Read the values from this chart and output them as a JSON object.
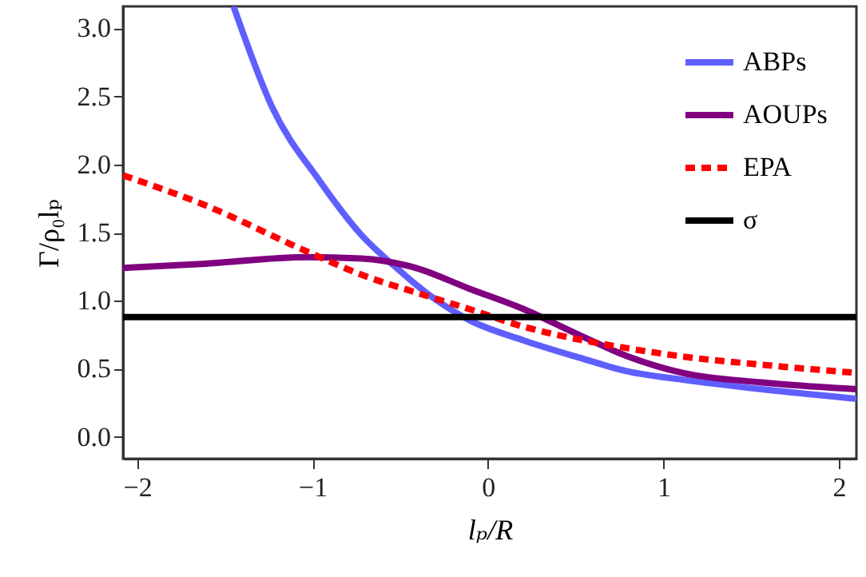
{
  "chart_data": {
    "type": "line",
    "xlabel": "lₚ/R",
    "ylabel": "Γ/ρ₀lₚ",
    "xlim": [
      -2.08,
      2.1
    ],
    "xticks": [
      -2,
      -1,
      0,
      1,
      2
    ],
    "ylim": [
      -0.16,
      3.16
    ],
    "yticks": [
      {
        "value": 0,
        "label": "0.0"
      },
      0.5,
      {
        "value": 1,
        "label": "1.0"
      },
      1.5,
      {
        "value": 2,
        "label": "2.0"
      },
      2.5,
      {
        "value": 3,
        "label": "3.0"
      }
    ],
    "legend": "top right",
    "grid": false,
    "series": [
      {
        "name": "ABPs",
        "color": "#5f5fff",
        "line_style": "solid",
        "x": [
          -1.45,
          -1.23,
          -0.96,
          -0.72,
          -0.53,
          -0.3,
          -0.11,
          0.2,
          0.5,
          0.8,
          1.11,
          1.56,
          2.1
        ],
        "values": [
          3.16,
          2.42,
          1.88,
          1.48,
          1.25,
          1.01,
          0.86,
          0.71,
          0.59,
          0.48,
          0.42,
          0.35,
          0.28
        ]
      },
      {
        "name": "AOUPs",
        "color": "#800080",
        "line_style": "solid",
        "x": [
          -2.08,
          -1.63,
          -1.03,
          -0.72,
          -0.41,
          -0.11,
          0.2,
          0.5,
          0.8,
          1.11,
          1.56,
          2.1
        ],
        "values": [
          1.24,
          1.27,
          1.32,
          1.31,
          1.24,
          1.09,
          0.94,
          0.76,
          0.59,
          0.47,
          0.4,
          0.35
        ]
      },
      {
        "name": "EPA",
        "color": "#ff0000",
        "line_style": "dashed",
        "x": [
          -2.08,
          -1.63,
          -1.03,
          -0.72,
          -0.41,
          -0.11,
          0.2,
          0.5,
          0.8,
          1.11,
          1.56,
          2.1
        ],
        "values": [
          1.92,
          1.71,
          1.36,
          1.19,
          1.06,
          0.94,
          0.81,
          0.72,
          0.65,
          0.59,
          0.53,
          0.47
        ]
      },
      {
        "name": "σ",
        "color": "#000000",
        "line_style": "solid",
        "x": [
          -2.08,
          2.1
        ],
        "values": [
          0.88,
          0.88
        ]
      }
    ]
  }
}
